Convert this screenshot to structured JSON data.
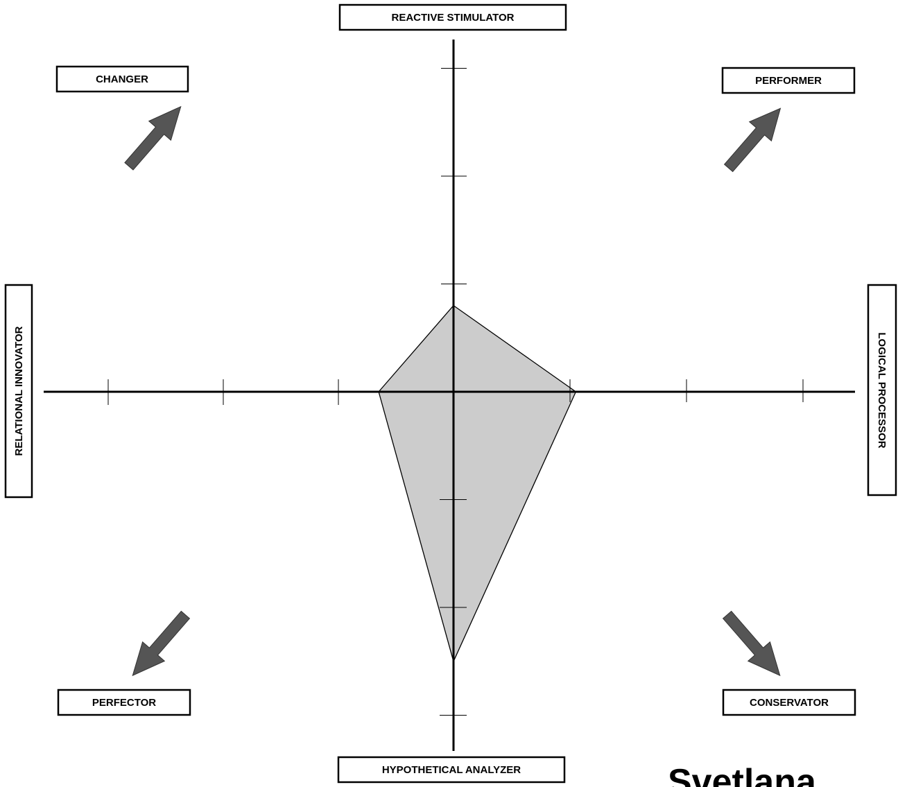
{
  "labels": {
    "top": "REACTIVE STIMULATOR",
    "bottom": "HYPOTHETICAL ANALYZER",
    "left": "RELATIONAL INNOVATOR",
    "right": "LOGICAL PROCESSOR",
    "top_left": "CHANGER",
    "top_right": "PERFORMER",
    "bottom_left": "PERFECTOR",
    "bottom_right": "CONSERVATOR"
  },
  "person_name": "Svetlana",
  "chart_data": {
    "type": "radar",
    "axes": [
      "REACTIVE STIMULATOR",
      "LOGICAL PROCESSOR",
      "HYPOTHETICAL ANALYZER",
      "RELATIONAL INNOVATOR"
    ],
    "values": [
      0.8,
      1.05,
      2.5,
      0.65
    ],
    "scale_ticks": 3,
    "colors": {
      "fill": "#cccccc",
      "stroke": "#000000",
      "arrow": "#555555"
    }
  }
}
